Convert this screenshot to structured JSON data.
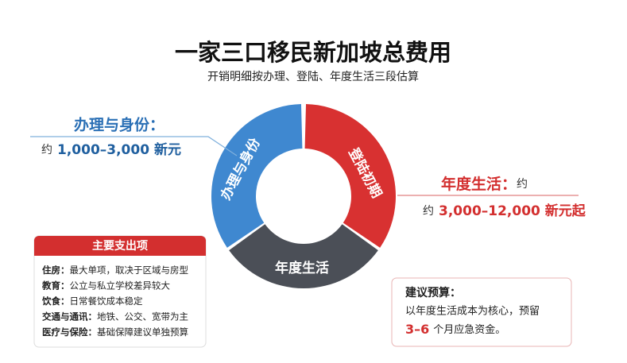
{
  "header": {
    "title": "一家三口移民新加坡总费用",
    "subtitle": "开销明细按办理、登陆、年度生活三段估算"
  },
  "donut": {
    "segments": [
      "办理与身份",
      "登陆初期",
      "年度生活"
    ]
  },
  "left_callout": {
    "label": "办理与身份：",
    "prefix": "约",
    "amount": "1,000–3,000 新元"
  },
  "right_callout": {
    "label": "年度生活：",
    "suffix": "约",
    "prefix": "约",
    "amount": "3,000–12,000 新元起"
  },
  "expenses": {
    "header": "主要支出项",
    "items": [
      {
        "label": "住房：",
        "text": "最大单项，取决于区域与房型"
      },
      {
        "label": "教育：",
        "text": "公立与私立学校差异较大"
      },
      {
        "label": "饮食：",
        "text": "日常餐饮成本稳定"
      },
      {
        "label": "交通与通讯：",
        "text": "地铁、公交、宽带为主"
      },
      {
        "label": "医疗与保险：",
        "text": "基础保障建议单独预算"
      }
    ]
  },
  "budget": {
    "title": "建议预算：",
    "line1": "以年度生活成本为核心，预留",
    "highlight": "3–6",
    "rest": "个月应急资金。"
  }
}
